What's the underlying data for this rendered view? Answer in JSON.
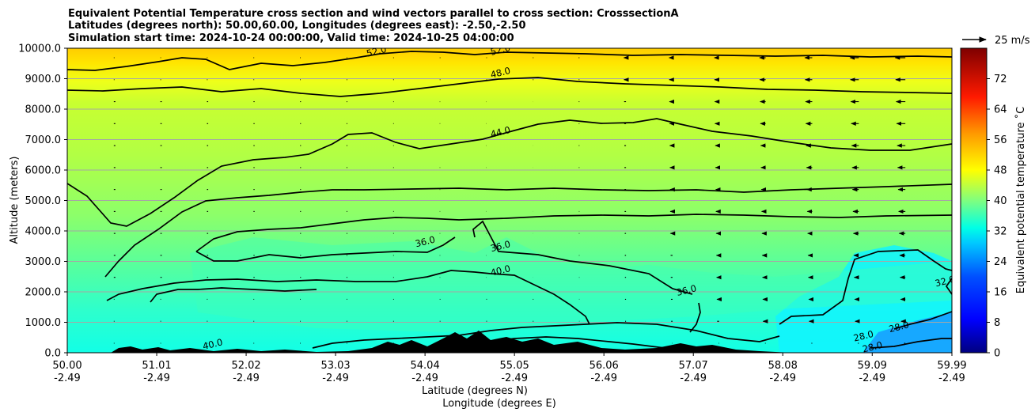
{
  "chart_data": {
    "type": "heatmap",
    "title_lines": [
      "Equivalent Potential Temperature cross section and wind vectors parallel to cross section: CrosssectionA",
      "Latitudes (degrees north): 50.00,60.00, Longitudes (degrees east): -2.50,-2.50",
      "Simulation start time: 2024-10-24 00:00:00, Valid time: 2024-10-25 04:00:00"
    ],
    "ylabel": "Altitude (meters)",
    "xlabel": "Latitude (degrees N)",
    "xlabel2": "Longitude (degrees E)",
    "xlim": [
      50.0,
      59.99
    ],
    "ylim": [
      0,
      10000
    ],
    "x_ticks": [
      {
        "lat": "50.00",
        "lon": "-2.49",
        "v": 50.0
      },
      {
        "lat": "51.01",
        "lon": "-2.49",
        "v": 51.01
      },
      {
        "lat": "52.02",
        "lon": "-2.49",
        "v": 52.02
      },
      {
        "lat": "53.03",
        "lon": "-2.49",
        "v": 53.03
      },
      {
        "lat": "54.04",
        "lon": "-2.49",
        "v": 54.04
      },
      {
        "lat": "55.05",
        "lon": "-2.49",
        "v": 55.05
      },
      {
        "lat": "56.06",
        "lon": "-2.49",
        "v": 56.06
      },
      {
        "lat": "57.07",
        "lon": "-2.49",
        "v": 57.07
      },
      {
        "lat": "58.08",
        "lon": "-2.49",
        "v": 58.08
      },
      {
        "lat": "59.09",
        "lon": "-2.49",
        "v": 59.09
      },
      {
        "lat": "59.99",
        "lon": "-2.49",
        "v": 59.99
      }
    ],
    "y_ticks": [
      {
        "label": "0.0",
        "v": 0
      },
      {
        "label": "1000.0",
        "v": 1000
      },
      {
        "label": "2000.0",
        "v": 2000
      },
      {
        "label": "3000.0",
        "v": 3000
      },
      {
        "label": "4000.0",
        "v": 4000
      },
      {
        "label": "5000.0",
        "v": 5000
      },
      {
        "label": "6000.0",
        "v": 6000
      },
      {
        "label": "7000.0",
        "v": 7000
      },
      {
        "label": "8000.0",
        "v": 8000
      },
      {
        "label": "9000.0",
        "v": 9000
      },
      {
        "label": "10000.0",
        "v": 10000
      }
    ],
    "grid": "horizontal",
    "colorbar": {
      "label": "Equivalent potential temperature ˚C",
      "range": [
        0,
        80
      ],
      "ticks": [
        "0",
        "8",
        "16",
        "24",
        "32",
        "40",
        "48",
        "56",
        "64",
        "72"
      ],
      "tick_values": [
        0,
        8,
        16,
        24,
        32,
        40,
        48,
        56,
        64,
        72
      ],
      "colors": [
        "#00007f",
        "#0000ff",
        "#007fff",
        "#00ffff",
        "#7fff7f",
        "#ffff00",
        "#ff7f00",
        "#ff0000",
        "#7f0000"
      ]
    },
    "quiver_key": {
      "label": "25 m/s",
      "value": 25
    },
    "contour_labels": [
      {
        "text": "52.0",
        "lat": 53.5,
        "alt": 9800
      },
      {
        "text": "52.0",
        "lat": 54.9,
        "alt": 9850
      },
      {
        "text": "48.0",
        "lat": 54.9,
        "alt": 9100
      },
      {
        "text": "44.0",
        "lat": 54.9,
        "alt": 7150
      },
      {
        "text": "36.0",
        "lat": 54.05,
        "alt": 3550
      },
      {
        "text": "36.0",
        "lat": 54.9,
        "alt": 3400
      },
      {
        "text": "40.0",
        "lat": 54.9,
        "alt": 2600
      },
      {
        "text": "36.0",
        "lat": 57.0,
        "alt": 1950
      },
      {
        "text": "40.0",
        "lat": 51.65,
        "alt": 180
      },
      {
        "text": "28.0",
        "lat": 59.0,
        "alt": 450
      },
      {
        "text": "28.0",
        "lat": 59.4,
        "alt": 750
      },
      {
        "text": "28.0",
        "lat": 59.1,
        "alt": 90
      },
      {
        "text": "32.0",
        "lat": 59.92,
        "alt": 2250
      }
    ]
  }
}
